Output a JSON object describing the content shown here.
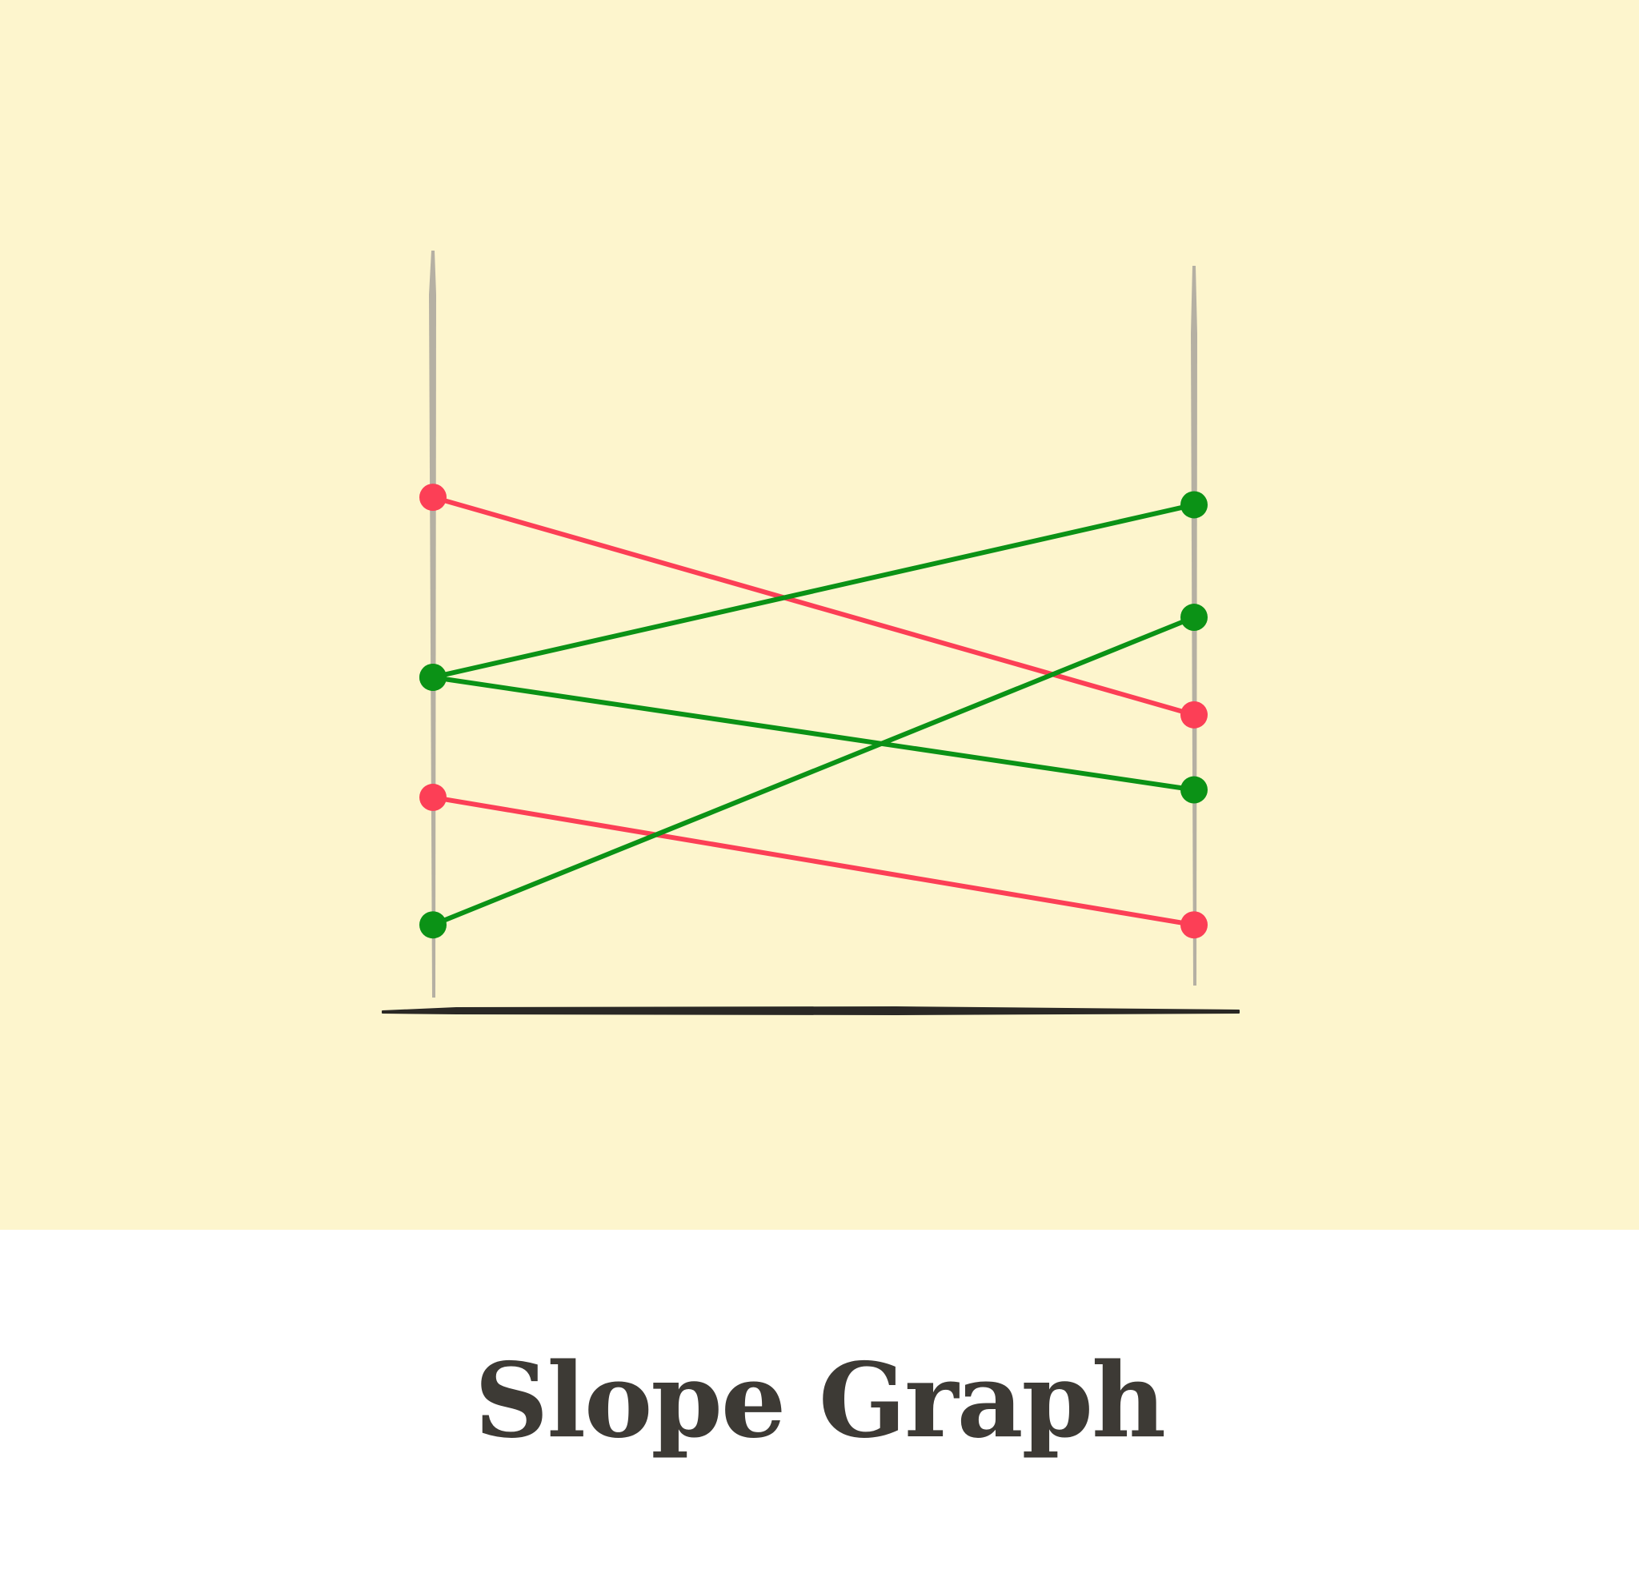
{
  "card": {
    "title": "Slope Graph"
  },
  "colors": {
    "panel_background": "#fdf5cd",
    "axis_line": "#b5b0a3",
    "baseline": "#2a2825",
    "increase": "#0b9216",
    "decrease": "#fc3f56",
    "title_text": "#3d3a35"
  },
  "chart_data": {
    "type": "line",
    "subtype": "slope",
    "title": "",
    "xlabel": "",
    "ylabel": "",
    "x": [
      0,
      1
    ],
    "ylim": [
      0,
      10
    ],
    "grid": false,
    "legend": "none",
    "axes_labels_shown": false,
    "series": [
      {
        "values": [
          7.0,
          4.1
        ],
        "trend": "decrease",
        "color": "#fc3f56"
      },
      {
        "values": [
          4.6,
          6.9
        ],
        "trend": "increase",
        "color": "#0b9216"
      },
      {
        "values": [
          4.6,
          3.1
        ],
        "trend": "decrease",
        "color": "#0b9216"
      },
      {
        "values": [
          3.0,
          1.3
        ],
        "trend": "decrease",
        "color": "#fc3f56"
      },
      {
        "values": [
          1.3,
          5.4
        ],
        "trend": "increase",
        "color": "#0b9216"
      }
    ]
  }
}
